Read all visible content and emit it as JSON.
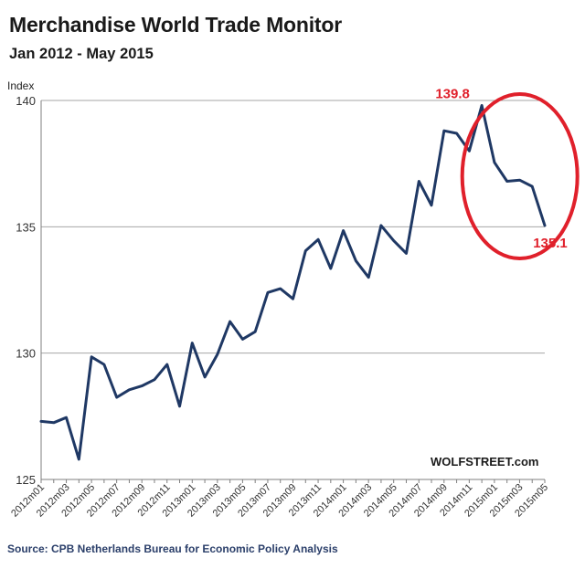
{
  "chart_data": {
    "type": "line",
    "title": "Merchandise World Trade Monitor",
    "subtitle": "Jan 2012 - May 2015",
    "ylabel": "Index",
    "xlabel": "",
    "ylim": [
      125,
      140
    ],
    "yticks": [
      125,
      130,
      135,
      140
    ],
    "grid": "horizontal",
    "x": [
      "2012m01",
      "2012m02",
      "2012m03",
      "2012m04",
      "2012m05",
      "2012m06",
      "2012m07",
      "2012m08",
      "2012m09",
      "2012m10",
      "2012m11",
      "2012m12",
      "2013m01",
      "2013m02",
      "2013m03",
      "2013m04",
      "2013m05",
      "2013m06",
      "2013m07",
      "2013m08",
      "2013m09",
      "2013m10",
      "2013m11",
      "2013m12",
      "2014m01",
      "2014m02",
      "2014m03",
      "2014m04",
      "2014m05",
      "2014m06",
      "2014m07",
      "2014m08",
      "2014m09",
      "2014m10",
      "2014m11",
      "2014m12",
      "2015m01",
      "2015m02",
      "2015m03",
      "2015m04",
      "2015m05"
    ],
    "xtick_labels": [
      "2012m01",
      "2012m03",
      "2012m05",
      "2012m07",
      "2012m09",
      "2012m11",
      "2013m01",
      "2013m03",
      "2013m05",
      "2013m07",
      "2013m09",
      "2013m11",
      "2014m01",
      "2014m03",
      "2014m05",
      "2014m07",
      "2014m09",
      "2014m11",
      "2015m01",
      "2015m03",
      "2015m05"
    ],
    "series": [
      {
        "color": "#1f3864",
        "values": [
          127.3,
          127.25,
          127.45,
          125.8,
          129.85,
          129.55,
          128.25,
          128.55,
          128.7,
          128.95,
          129.55,
          127.9,
          130.4,
          129.05,
          129.95,
          131.25,
          130.55,
          130.85,
          132.4,
          132.55,
          132.15,
          134.05,
          134.5,
          133.35,
          134.85,
          133.65,
          133.0,
          135.05,
          134.45,
          133.95,
          136.8,
          135.85,
          138.8,
          138.7,
          138.0,
          139.8,
          137.55,
          136.8,
          136.85,
          136.6,
          135.05
        ]
      }
    ],
    "annotations": [
      {
        "text": "139.8",
        "x": "2014m12",
        "y": 139.8,
        "color": "#e0202b"
      },
      {
        "text": "135.1",
        "x": "2015m05",
        "y": 135.05,
        "color": "#e0202b"
      }
    ],
    "highlight": {
      "shape": "ellipse",
      "color": "#e0202b"
    }
  },
  "source_text": "Source: CPB Netherlands Bureau for Economic Policy Analysis",
  "brand": "WOLFSTREET.com"
}
